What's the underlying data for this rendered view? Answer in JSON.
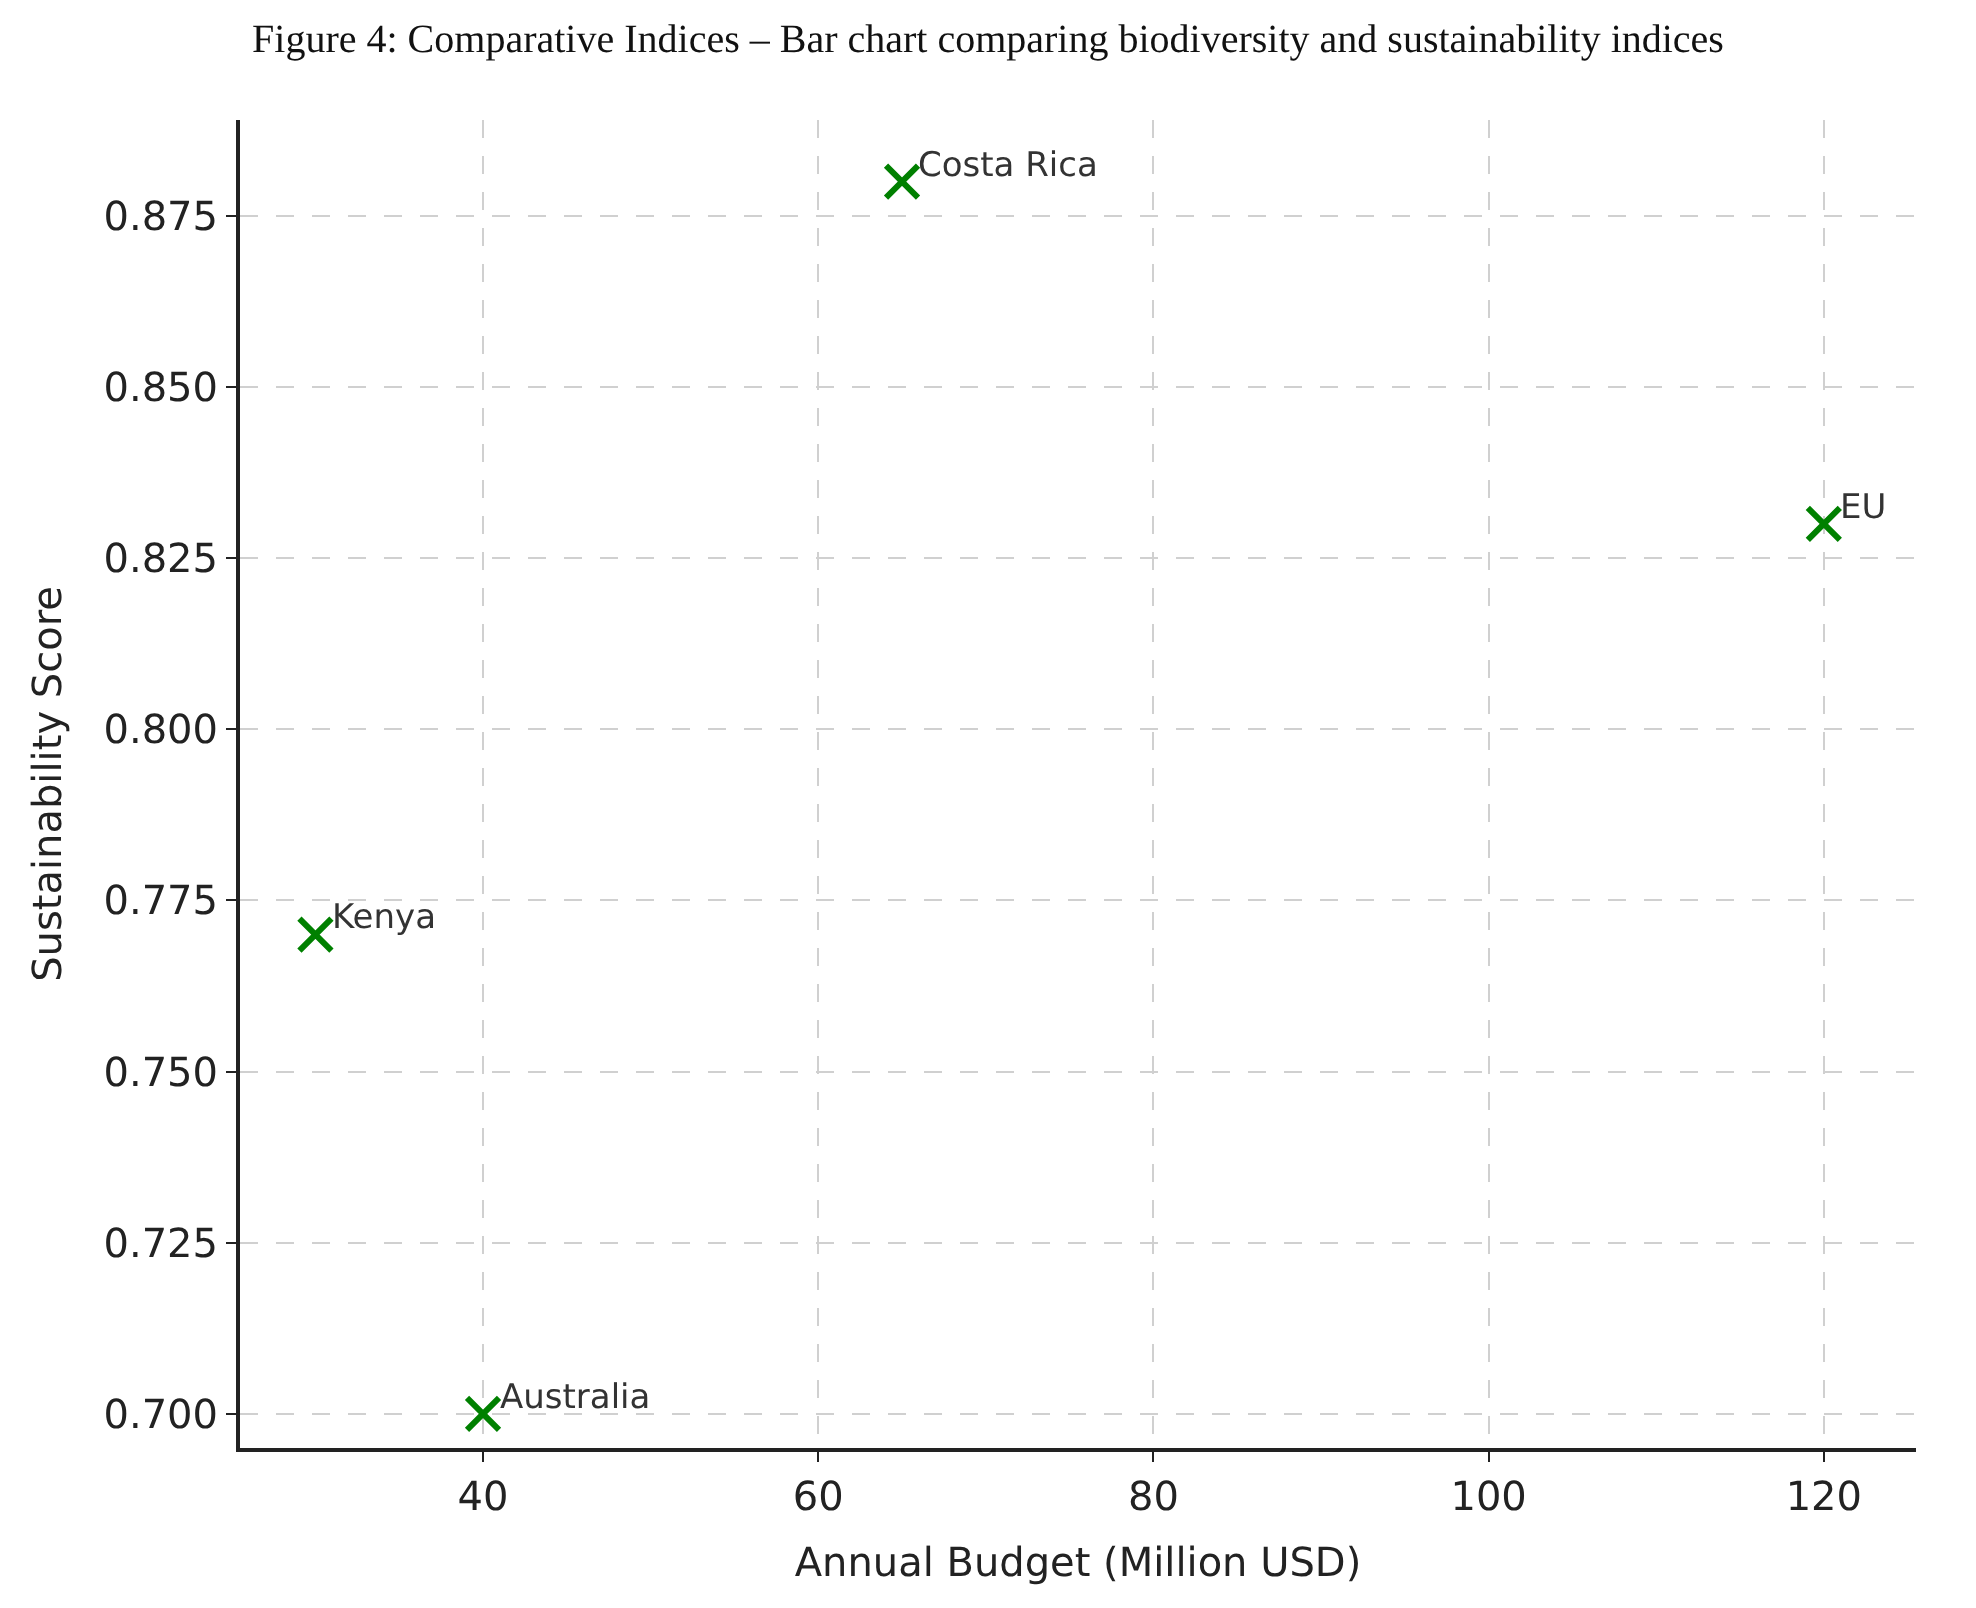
{
  "chart_data": {
    "type": "scatter",
    "title": "Figure 4: Comparative Indices – Bar chart comparing biodiversity and sustainability indices",
    "xlabel": "Annual Budget (Million USD)",
    "ylabel": "Sustainability Score",
    "x": [
      65,
      120,
      30,
      40
    ],
    "values": [
      0.88,
      0.83,
      0.77,
      0.7
    ],
    "color": "#008000",
    "marker": "cross",
    "annotations": [
      {
        "text": "Costa Rica",
        "x": 65,
        "y": 0.88
      },
      {
        "text": "EU",
        "x": 120,
        "y": 0.83
      },
      {
        "text": "Kenya",
        "x": 30,
        "y": 0.77
      },
      {
        "text": "Australia",
        "x": 40,
        "y": 0.7
      }
    ],
    "xlim": [
      25.5,
      125.5
    ],
    "xticks": [
      40,
      60,
      80,
      100,
      120
    ],
    "ylim": [
      0.695,
      0.889
    ],
    "yticks": [
      {
        "value": 0.7,
        "label": "0.700"
      },
      {
        "value": 0.725,
        "label": "0.725"
      },
      {
        "value": 0.75,
        "label": "0.750"
      },
      {
        "value": 0.775,
        "label": "0.775"
      },
      {
        "value": 0.8,
        "label": "0.800"
      },
      {
        "value": 0.825,
        "label": "0.825"
      },
      {
        "value": 0.85,
        "label": "0.850"
      },
      {
        "value": 0.875,
        "label": "0.875"
      }
    ],
    "grid": true
  }
}
